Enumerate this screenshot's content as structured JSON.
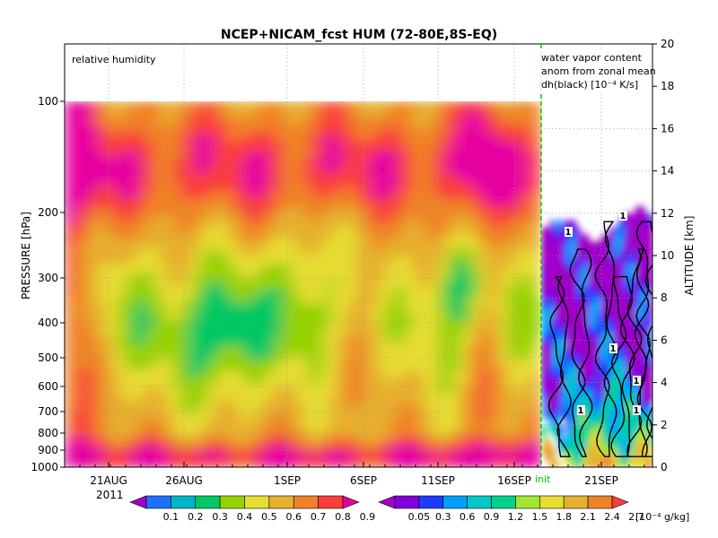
{
  "chart_data": {
    "type": "heatmap",
    "title": "NCEP+NICAM_fcst HUM (72-80E,8S-EQ)",
    "left_panel_label": "relative humidity",
    "right_panel_label": [
      "water vapor content",
      "anom from zonal mean",
      "dh(black) [10⁻⁴ K/s]"
    ],
    "ylabel_left": "PRESSURE [hPa]",
    "ylabel_right": "ALTITUDE [km]",
    "y_ticks_left": [
      "100",
      "200",
      "300",
      "400",
      "500",
      "600",
      "700",
      "800",
      "900",
      "1000"
    ],
    "y_ticks_right": [
      "0",
      "2",
      "4",
      "6",
      "8",
      "10",
      "12",
      "14",
      "16",
      "18",
      "20"
    ],
    "x_ticks": [
      "21AUG",
      "26AUG",
      "1SEP",
      "6SEP",
      "11SEP",
      "16SEP",
      "21SEP"
    ],
    "x_year": "2011",
    "init_marker": "init",
    "colorbar_left": {
      "labels": [
        "0.1",
        "0.2",
        "0.3",
        "0.4",
        "0.5",
        "0.6",
        "0.7",
        "0.8",
        "0.9"
      ],
      "colors": [
        "#a000c8",
        "#1e6eff",
        "#00b4c8",
        "#00c864",
        "#96d200",
        "#e6dc32",
        "#e6af2d",
        "#f08228",
        "#fa3c3c",
        "#e600a0"
      ]
    },
    "colorbar_right": {
      "labels": [
        "0.05",
        "0.3",
        "0.6",
        "0.9",
        "1.2",
        "1.5",
        "1.8",
        "2.1",
        "2.4",
        "2.7"
      ],
      "unit": "[10⁻⁴ g/kg]",
      "colors": [
        "#a000c8",
        "#8200dc",
        "#1e3cff",
        "#00a0ff",
        "#00c8c8",
        "#00d28c",
        "#a0e632",
        "#e6dc32",
        "#e6af2d",
        "#f08228",
        "#fa3c3c"
      ]
    },
    "contour_labels": [
      "1",
      "1",
      "1",
      "1",
      "1",
      "1"
    ]
  }
}
